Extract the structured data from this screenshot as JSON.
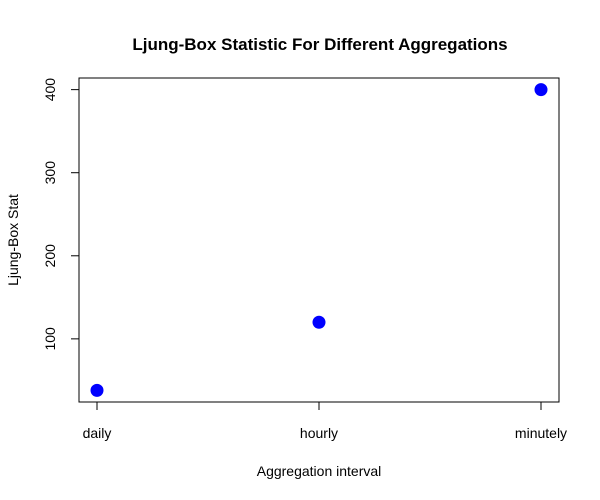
{
  "chart_data": {
    "type": "scatter",
    "title": "Ljung-Box Statistic For Different Aggregations",
    "xlabel": "Aggregation interval",
    "ylabel": "Ljung-Box Stat",
    "categories": [
      "daily",
      "hourly",
      "minutely"
    ],
    "values": [
      38,
      120,
      400
    ],
    "ylim": [
      24,
      414
    ],
    "yticks": [
      100,
      200,
      300,
      400
    ],
    "grid": false,
    "point_color": "#0000ff"
  }
}
